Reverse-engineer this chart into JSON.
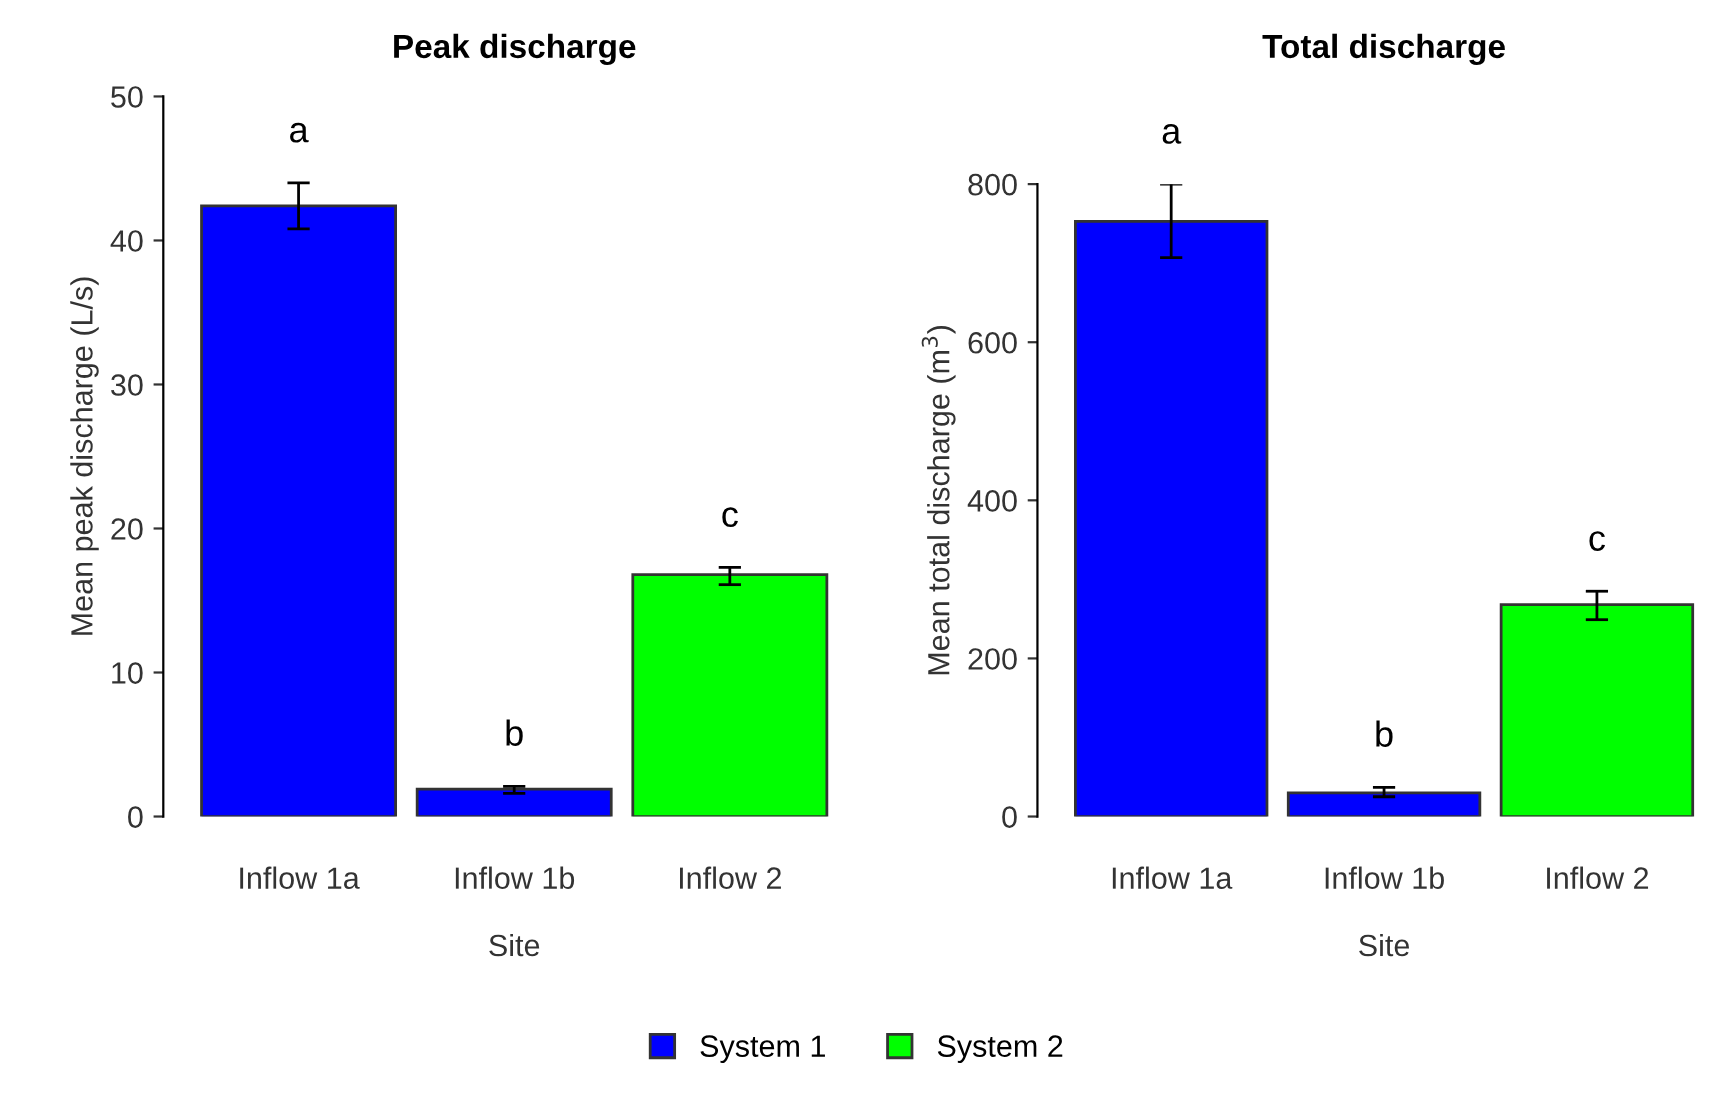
{
  "chart_data": [
    {
      "type": "bar",
      "title": "Peak discharge",
      "xlabel": "Site",
      "ylabel": "Mean peak discharge (L/s)",
      "categories": [
        "Inflow 1a",
        "Inflow 1b",
        "Inflow 2"
      ],
      "stacked": true,
      "series": [
        {
          "name": "System 1",
          "color": "#0000ff",
          "values": [
            42.4,
            1.9,
            null
          ],
          "errors": [
            [
              40.8,
              44.0
            ],
            [
              1.6,
              2.1
            ],
            null
          ]
        },
        {
          "name": "System 2",
          "color": "#00ff00",
          "values": [
            null,
            null,
            16.8
          ],
          "errors": [
            null,
            null,
            [
              16.1,
              17.3
            ]
          ]
        }
      ],
      "ylim": [
        0,
        50
      ],
      "yticks": [
        0,
        10,
        20,
        30,
        40,
        50
      ],
      "grid": false,
      "legend": "bottom",
      "annotations": [
        "a",
        "b",
        "c"
      ]
    },
    {
      "type": "bar",
      "title": "Total discharge",
      "xlabel": "Site",
      "ylabel": "Mean total discharge (m$^{3}$)",
      "categories": [
        "Inflow 1a",
        "Inflow 1b",
        "Inflow 2"
      ],
      "stacked": true,
      "series": [
        {
          "name": "System 1",
          "color": "#0000ff",
          "values": [
            753,
            30,
            null
          ],
          "errors": [
            [
              707,
              800
            ],
            [
              25,
              37
            ],
            null
          ]
        },
        {
          "name": "System 2",
          "color": "#00ff00",
          "values": [
            null,
            null,
            268
          ],
          "errors": [
            null,
            null,
            [
              249,
              285
            ]
          ]
        }
      ],
      "ylim": [
        0,
        800
      ],
      "yticks": [
        0,
        200,
        400,
        600,
        800
      ],
      "grid": false,
      "legend": "bottom",
      "annotations": [
        "a",
        "b",
        "c"
      ]
    }
  ]
}
